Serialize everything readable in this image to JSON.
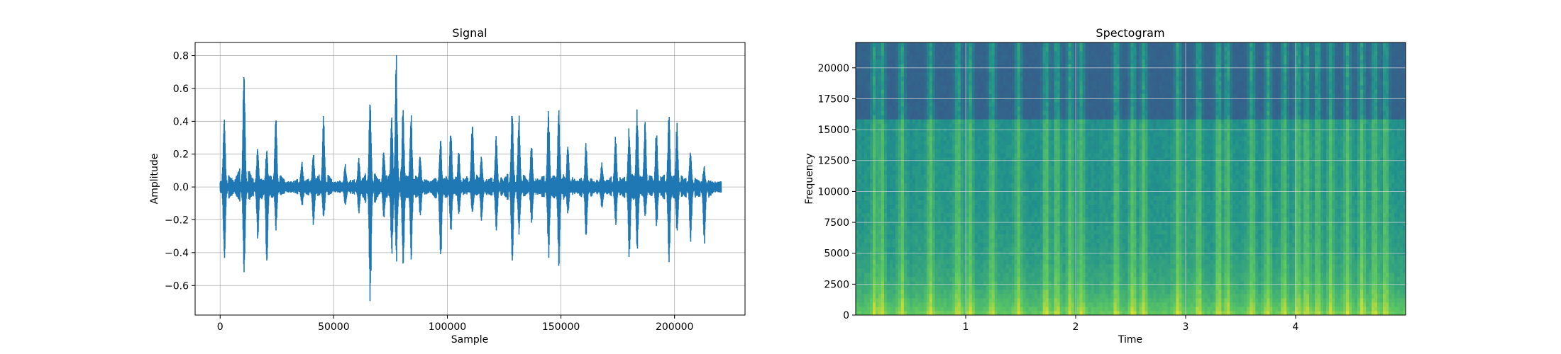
{
  "chart_data": [
    {
      "type": "line",
      "title": "Signal",
      "xlabel": "Sample",
      "ylabel": "Amplitude",
      "xlim": [
        -11000,
        231000
      ],
      "ylim": [
        -0.78,
        0.88
      ],
      "xticks": [
        0,
        50000,
        100000,
        150000,
        200000
      ],
      "xtick_labels": [
        "0",
        "50000",
        "100000",
        "150000",
        "200000"
      ],
      "yticks": [
        -0.6,
        -0.4,
        -0.2,
        0.0,
        0.2,
        0.4,
        0.6,
        0.8
      ],
      "ytick_labels": [
        "−0.6",
        "−0.4",
        "−0.2",
        "0.0",
        "0.2",
        "0.4",
        "0.6",
        "0.8"
      ],
      "grid": true,
      "color": "#1f77b4",
      "series": [
        {
          "x_range": [
            0,
            220500
          ],
          "baseline_noise": 0.025,
          "spikes": [
            {
              "x": 1800,
              "max": 0.44,
              "min": -0.43
            },
            {
              "x": 10500,
              "max": 0.78,
              "min": -0.54
            },
            {
              "x": 16500,
              "max": 0.22,
              "min": -0.29
            },
            {
              "x": 20500,
              "max": 0.21,
              "min": -0.48
            },
            {
              "x": 24500,
              "max": 0.48,
              "min": -0.25
            },
            {
              "x": 36000,
              "max": 0.14,
              "min": -0.1
            },
            {
              "x": 41000,
              "max": 0.2,
              "min": -0.22
            },
            {
              "x": 45500,
              "max": 0.43,
              "min": -0.18
            },
            {
              "x": 55000,
              "max": 0.12,
              "min": -0.1
            },
            {
              "x": 61000,
              "max": 0.15,
              "min": -0.14
            },
            {
              "x": 66000,
              "max": 0.55,
              "min": -0.7
            },
            {
              "x": 72000,
              "max": 0.22,
              "min": -0.18
            },
            {
              "x": 75500,
              "max": 0.45,
              "min": -0.4
            },
            {
              "x": 77500,
              "max": 0.8,
              "min": -0.46
            },
            {
              "x": 80500,
              "max": 0.48,
              "min": -0.49
            },
            {
              "x": 84000,
              "max": 0.47,
              "min": -0.43
            },
            {
              "x": 88000,
              "max": 0.18,
              "min": -0.17
            },
            {
              "x": 97000,
              "max": 0.28,
              "min": -0.45
            },
            {
              "x": 101500,
              "max": 0.38,
              "min": -0.27
            },
            {
              "x": 105000,
              "max": 0.2,
              "min": -0.15
            },
            {
              "x": 111000,
              "max": 0.4,
              "min": -0.15
            },
            {
              "x": 115000,
              "max": 0.18,
              "min": -0.2
            },
            {
              "x": 121500,
              "max": 0.3,
              "min": -0.25
            },
            {
              "x": 128500,
              "max": 0.49,
              "min": -0.47
            },
            {
              "x": 131500,
              "max": 0.46,
              "min": -0.28
            },
            {
              "x": 137000,
              "max": 0.25,
              "min": -0.2
            },
            {
              "x": 144500,
              "max": 0.48,
              "min": -0.42
            },
            {
              "x": 149000,
              "max": 0.47,
              "min": -0.47
            },
            {
              "x": 153000,
              "max": 0.26,
              "min": -0.14
            },
            {
              "x": 161000,
              "max": 0.24,
              "min": -0.3
            },
            {
              "x": 168000,
              "max": 0.12,
              "min": -0.12
            },
            {
              "x": 174000,
              "max": 0.3,
              "min": -0.22
            },
            {
              "x": 180000,
              "max": 0.36,
              "min": -0.42
            },
            {
              "x": 183500,
              "max": 0.47,
              "min": -0.38
            },
            {
              "x": 187000,
              "max": 0.42,
              "min": -0.18
            },
            {
              "x": 192000,
              "max": 0.36,
              "min": -0.24
            },
            {
              "x": 197500,
              "max": 0.45,
              "min": -0.45
            },
            {
              "x": 201000,
              "max": 0.38,
              "min": -0.28
            },
            {
              "x": 207000,
              "max": 0.23,
              "min": -0.32
            },
            {
              "x": 213000,
              "max": 0.1,
              "min": -0.34
            }
          ]
        }
      ]
    },
    {
      "type": "heatmap",
      "title": "Spectogram",
      "xlabel": "Time",
      "ylabel": "Frequency",
      "xlim": [
        0.0,
        5.0
      ],
      "ylim": [
        0,
        22050
      ],
      "xticks": [
        1,
        2,
        3,
        4
      ],
      "xtick_labels": [
        "1",
        "2",
        "3",
        "4"
      ],
      "yticks": [
        0,
        2500,
        5000,
        7500,
        10000,
        12500,
        15000,
        17500,
        20000
      ],
      "ytick_labels": [
        "0",
        "2500",
        "5000",
        "7500",
        "10000",
        "12500",
        "15000",
        "17500",
        "20000"
      ],
      "grid": true,
      "colormap": [
        "#440154",
        "#3b528b",
        "#21918c",
        "#5ec962",
        "#fde725"
      ],
      "cutoff_frequency": 16000,
      "bright_bands": [
        0.17,
        0.24,
        0.42,
        0.68,
        0.93,
        1.04,
        1.24,
        1.48,
        1.73,
        1.83,
        1.95,
        2.05,
        2.37,
        2.52,
        2.62,
        2.93,
        3.12,
        3.3,
        3.38,
        3.6,
        3.75,
        3.9,
        4.02,
        4.1,
        4.2,
        4.32,
        4.47,
        4.6,
        4.72,
        4.82
      ]
    }
  ]
}
